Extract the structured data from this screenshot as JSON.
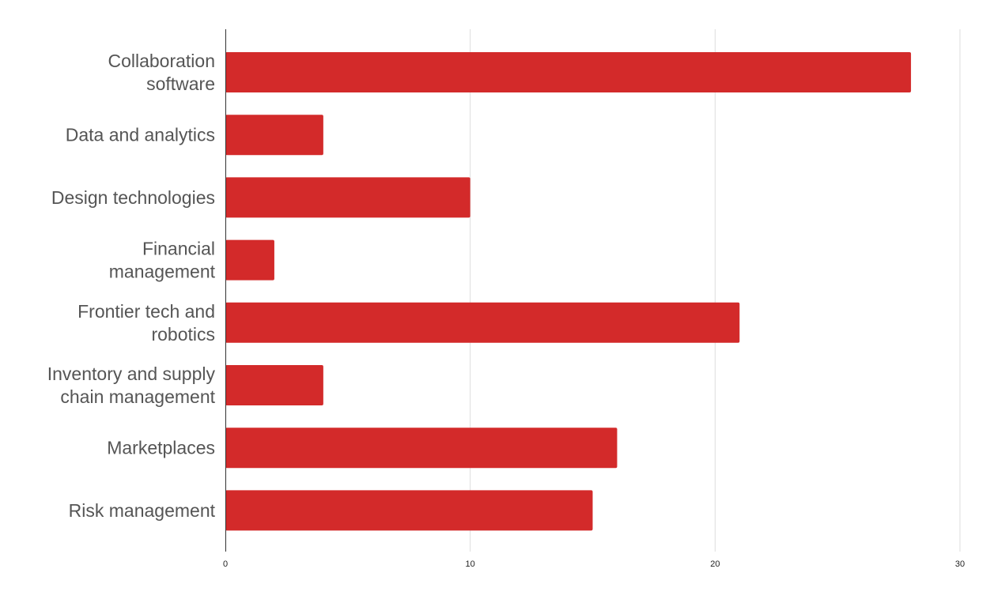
{
  "chart_data": {
    "type": "bar",
    "orientation": "horizontal",
    "categories": [
      [
        "Collaboration",
        "software"
      ],
      [
        "Data and analytics"
      ],
      [
        "Design technologies"
      ],
      [
        "Financial",
        "management"
      ],
      [
        "Frontier tech and",
        "robotics"
      ],
      [
        "Inventory and supply",
        "chain management"
      ],
      [
        "Marketplaces"
      ],
      [
        "Risk management"
      ]
    ],
    "values": [
      28,
      4,
      10,
      2,
      21,
      4,
      16,
      15
    ],
    "xlim": [
      0,
      30
    ],
    "xticks": [
      "0",
      "10",
      "20",
      "30"
    ],
    "grid": true,
    "legend": "none",
    "bar_color": "#d32a2a"
  }
}
